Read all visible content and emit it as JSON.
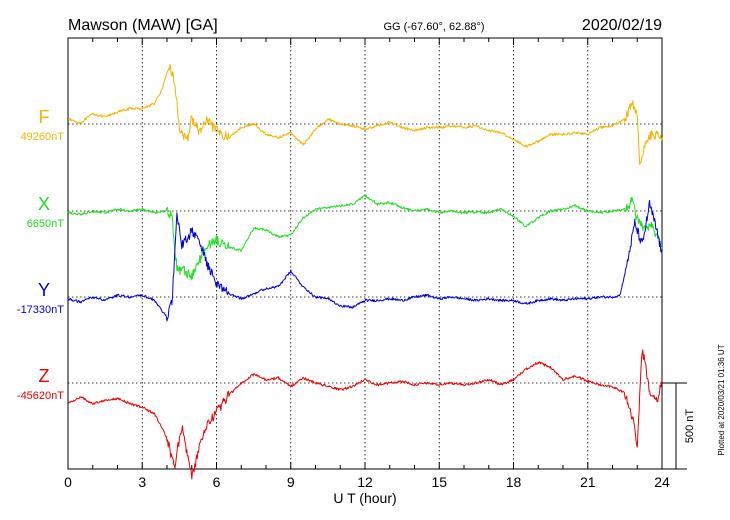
{
  "header": {
    "station": "Mawson (MAW)  [GA]",
    "coords": "GG (-67.60°,  62.88°)",
    "date": "2020/02/19"
  },
  "side_note": "Plotted at 2020/03/21 01:36 UT",
  "scale_label": "500 nT",
  "colors": {
    "F": "#f5b400",
    "X": "#22dd22",
    "Y": "#0000dd",
    "Z": "#ee0000",
    "axis": "#000000"
  },
  "chart_data": {
    "type": "line",
    "xlabel": "U T (hour)",
    "xlim": [
      0,
      24
    ],
    "x_ticks": [
      "0",
      "3",
      "6",
      "9",
      "12",
      "15",
      "18",
      "21",
      "24"
    ],
    "scale_bar_nT": 500,
    "series": [
      {
        "name": "F",
        "baseline_label": "49260nT",
        "baseline_nT": 49260,
        "points": [
          [
            0,
            30
          ],
          [
            0.5,
            5
          ],
          [
            1,
            60
          ],
          [
            1.5,
            40
          ],
          [
            2,
            70
          ],
          [
            2.5,
            90
          ],
          [
            3,
            90
          ],
          [
            3.5,
            120
          ],
          [
            3.8,
            200
          ],
          [
            4.1,
            340
          ],
          [
            4.3,
            250
          ],
          [
            4.5,
            -20
          ],
          [
            4.8,
            -110
          ],
          [
            5,
            40
          ],
          [
            5.3,
            -50
          ],
          [
            5.6,
            20
          ],
          [
            6,
            -40
          ],
          [
            6.5,
            -80
          ],
          [
            7,
            -20
          ],
          [
            7.5,
            0
          ],
          [
            8,
            -60
          ],
          [
            8.5,
            -80
          ],
          [
            9,
            -50
          ],
          [
            9.5,
            -120
          ],
          [
            10,
            -30
          ],
          [
            10.5,
            30
          ],
          [
            11,
            0
          ],
          [
            11.5,
            -10
          ],
          [
            12,
            -30
          ],
          [
            12.5,
            -10
          ],
          [
            13,
            10
          ],
          [
            13.5,
            -20
          ],
          [
            14,
            -40
          ],
          [
            14.5,
            -20
          ],
          [
            15,
            -20
          ],
          [
            15.5,
            -10
          ],
          [
            16,
            -20
          ],
          [
            16.5,
            -10
          ],
          [
            17,
            -40
          ],
          [
            17.5,
            -50
          ],
          [
            18,
            -90
          ],
          [
            18.5,
            -130
          ],
          [
            19,
            -100
          ],
          [
            19.5,
            -60
          ],
          [
            20,
            -60
          ],
          [
            20.5,
            -50
          ],
          [
            21,
            -60
          ],
          [
            21.5,
            -20
          ],
          [
            22,
            -10
          ],
          [
            22.5,
            30
          ],
          [
            22.8,
            120
          ],
          [
            23,
            40
          ],
          [
            23.1,
            -260
          ],
          [
            23.3,
            -110
          ],
          [
            23.6,
            -60
          ],
          [
            24,
            -80
          ]
        ]
      },
      {
        "name": "X",
        "baseline_label": "6650nT",
        "baseline_nT": 6650,
        "points": [
          [
            0,
            -10
          ],
          [
            0.5,
            -20
          ],
          [
            1,
            0
          ],
          [
            1.5,
            -10
          ],
          [
            2,
            10
          ],
          [
            2.5,
            0
          ],
          [
            3,
            10
          ],
          [
            3.5,
            -10
          ],
          [
            4,
            0
          ],
          [
            4.2,
            -30
          ],
          [
            4.4,
            -340
          ],
          [
            4.7,
            -350
          ],
          [
            5,
            -380
          ],
          [
            5.3,
            -290
          ],
          [
            5.6,
            -200
          ],
          [
            6,
            -170
          ],
          [
            6.5,
            -210
          ],
          [
            7,
            -230
          ],
          [
            7.5,
            -100
          ],
          [
            8,
            -110
          ],
          [
            8.5,
            -150
          ],
          [
            9,
            -140
          ],
          [
            9.5,
            -40
          ],
          [
            10,
            10
          ],
          [
            10.5,
            20
          ],
          [
            11,
            30
          ],
          [
            11.5,
            40
          ],
          [
            12,
            90
          ],
          [
            12.5,
            40
          ],
          [
            13,
            50
          ],
          [
            13.5,
            20
          ],
          [
            14,
            0
          ],
          [
            14.5,
            10
          ],
          [
            15,
            -10
          ],
          [
            15.5,
            0
          ],
          [
            16,
            -10
          ],
          [
            16.5,
            -5
          ],
          [
            17,
            -10
          ],
          [
            17.5,
            10
          ],
          [
            18,
            -30
          ],
          [
            18.5,
            -90
          ],
          [
            19,
            -40
          ],
          [
            19.5,
            0
          ],
          [
            20,
            10
          ],
          [
            20.5,
            30
          ],
          [
            21,
            0
          ],
          [
            21.5,
            -10
          ],
          [
            22,
            0
          ],
          [
            22.5,
            10
          ],
          [
            22.8,
            60
          ],
          [
            23,
            -50
          ],
          [
            23.3,
            -110
          ],
          [
            23.6,
            -90
          ],
          [
            24,
            -220
          ]
        ]
      },
      {
        "name": "Y",
        "baseline_label": "-17330nT",
        "baseline_nT": -17330,
        "points": [
          [
            0,
            -10
          ],
          [
            0.5,
            -30
          ],
          [
            1,
            0
          ],
          [
            1.5,
            -20
          ],
          [
            2,
            10
          ],
          [
            2.5,
            0
          ],
          [
            3,
            10
          ],
          [
            3.5,
            -20
          ],
          [
            4,
            -120
          ],
          [
            4.2,
            -30
          ],
          [
            4.4,
            470
          ],
          [
            4.6,
            300
          ],
          [
            5,
            380
          ],
          [
            5.3,
            330
          ],
          [
            5.6,
            200
          ],
          [
            6,
            80
          ],
          [
            6.5,
            20
          ],
          [
            7,
            -10
          ],
          [
            7.5,
            20
          ],
          [
            8,
            50
          ],
          [
            8.5,
            60
          ],
          [
            9,
            150
          ],
          [
            9.5,
            60
          ],
          [
            10,
            0
          ],
          [
            10.5,
            -10
          ],
          [
            11,
            -50
          ],
          [
            11.5,
            -60
          ],
          [
            12,
            -20
          ],
          [
            12.5,
            -20
          ],
          [
            13,
            -10
          ],
          [
            13.5,
            -20
          ],
          [
            14,
            0
          ],
          [
            14.5,
            10
          ],
          [
            15,
            -10
          ],
          [
            15.5,
            0
          ],
          [
            16,
            -10
          ],
          [
            16.5,
            -20
          ],
          [
            17,
            -10
          ],
          [
            17.5,
            -20
          ],
          [
            18,
            -20
          ],
          [
            18.5,
            -40
          ],
          [
            19,
            -20
          ],
          [
            19.5,
            -10
          ],
          [
            20,
            -20
          ],
          [
            20.5,
            -10
          ],
          [
            21,
            -10
          ],
          [
            21.5,
            0
          ],
          [
            22,
            0
          ],
          [
            22.3,
            10
          ],
          [
            22.6,
            200
          ],
          [
            22.9,
            430
          ],
          [
            23.2,
            300
          ],
          [
            23.5,
            540
          ],
          [
            23.8,
            380
          ],
          [
            24,
            250
          ]
        ]
      },
      {
        "name": "Z",
        "baseline_label": "-45620nT",
        "baseline_nT": -45620,
        "points": [
          [
            0,
            -120
          ],
          [
            0.5,
            -80
          ],
          [
            1,
            -120
          ],
          [
            1.5,
            -100
          ],
          [
            2,
            -90
          ],
          [
            2.5,
            -120
          ],
          [
            3,
            -140
          ],
          [
            3.5,
            -180
          ],
          [
            4,
            -320
          ],
          [
            4.3,
            -490
          ],
          [
            4.6,
            -250
          ],
          [
            5,
            -550
          ],
          [
            5.3,
            -380
          ],
          [
            5.6,
            -250
          ],
          [
            6,
            -170
          ],
          [
            6.5,
            -70
          ],
          [
            7,
            0
          ],
          [
            7.5,
            50
          ],
          [
            8,
            20
          ],
          [
            8.5,
            30
          ],
          [
            9,
            -20
          ],
          [
            9.5,
            30
          ],
          [
            10,
            0
          ],
          [
            10.5,
            -20
          ],
          [
            11,
            -40
          ],
          [
            11.5,
            -20
          ],
          [
            12,
            20
          ],
          [
            12.5,
            -10
          ],
          [
            13,
            0
          ],
          [
            13.5,
            10
          ],
          [
            14,
            -10
          ],
          [
            14.5,
            0
          ],
          [
            15,
            -10
          ],
          [
            15.5,
            0
          ],
          [
            16,
            -10
          ],
          [
            16.5,
            0
          ],
          [
            17,
            20
          ],
          [
            17.5,
            -10
          ],
          [
            18,
            20
          ],
          [
            18.5,
            80
          ],
          [
            19,
            120
          ],
          [
            19.5,
            90
          ],
          [
            20,
            20
          ],
          [
            20.5,
            40
          ],
          [
            21,
            10
          ],
          [
            21.5,
            -10
          ],
          [
            22,
            -20
          ],
          [
            22.5,
            -60
          ],
          [
            22.8,
            -200
          ],
          [
            23,
            -350
          ],
          [
            23.2,
            200
          ],
          [
            23.5,
            -40
          ],
          [
            23.8,
            -100
          ],
          [
            24,
            20
          ]
        ]
      }
    ]
  }
}
